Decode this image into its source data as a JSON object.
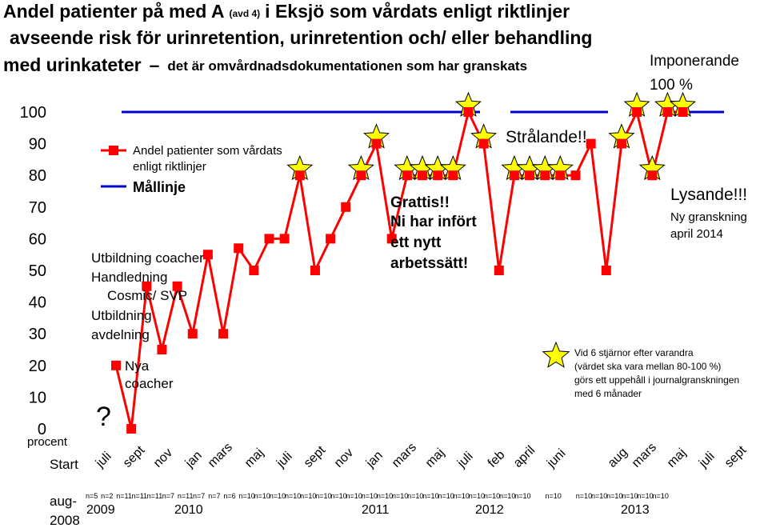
{
  "title": {
    "line1_a": "Andel patienter på med A",
    "line1_small": "(avd 4)",
    "line1_b": "i Eksjö som vårdats enligt riktlinjer",
    "line2": "avseende risk för urinretention, urinretention och/ eller behandling",
    "line3_a": "med urinkateter",
    "line3_dash": "–",
    "line3_b": "det är omvårdnadsdokumentationen som har granskats"
  },
  "annotations": {
    "imponerande": "Imponerande",
    "hundra": "100 %",
    "stralande": "Strålande!!",
    "lysande": "Lysande!!!",
    "ny_granskning_1": "Ny granskning",
    "ny_granskning_2": "april 2014",
    "grattis_1": "Grattis!!",
    "grattis_2": "Ni har infört",
    "grattis_3": "ett nytt",
    "grattis_4": "arbetssätt!",
    "utb_coacher": "Utbildning coacher",
    "handledning": "Handledning",
    "cosmic": "Cosmic/ SVP",
    "utb_avd_1": "Utbildning",
    "utb_avd_2": "avdelning",
    "nya_1": "Nya",
    "nya_2": "coacher",
    "question": "?",
    "star_note_1": "Vid 6 stjärnor efter varandra",
    "star_note_2": "(värdet ska vara mellan 80-100 %)",
    "star_note_3": "görs ett uppehåll i journalgranskningen",
    "star_note_4": "med 6 månader"
  },
  "legend": {
    "series": "Andel patienter som vårdats",
    "series_2": "enligt riktlinjer",
    "target": "Mållinje"
  },
  "axis": {
    "ylabel": "procent",
    "start": "Start",
    "aug_1": "aug-",
    "aug_2": "2008",
    "yticks": [
      "0",
      "10",
      "20",
      "30",
      "40",
      "50",
      "60",
      "70",
      "80",
      "90",
      "100"
    ],
    "months": [
      "juli",
      "sept",
      "nov",
      "jan",
      "mars",
      "maj",
      "juli",
      "sept",
      "nov",
      "jan",
      "mars",
      "maj",
      "juli",
      "feb",
      "april",
      "juni",
      "aug",
      "mars",
      "maj",
      "juli",
      "sept"
    ],
    "years": [
      "2009",
      "2010",
      "2011",
      "2012",
      "2013"
    ]
  },
  "colors": {
    "series": "#ff0000",
    "target": "#0000cc",
    "star_fill": "#ffff00"
  },
  "chart_data": {
    "type": "line",
    "ylim": [
      0,
      100
    ],
    "target_value": 100,
    "series": [
      {
        "name": "Andel patienter som vårdats enligt riktlinjer",
        "values": [
          20,
          0,
          45,
          25,
          45,
          30,
          55,
          30,
          57,
          50,
          60,
          60,
          80,
          50,
          60,
          70,
          80,
          90,
          60,
          80,
          80,
          80,
          80,
          100,
          90,
          50,
          80,
          80,
          80,
          80,
          80,
          90,
          50,
          90,
          100,
          80,
          100,
          100
        ],
        "stars": [
          false,
          false,
          false,
          false,
          false,
          false,
          false,
          false,
          false,
          false,
          false,
          false,
          true,
          false,
          false,
          false,
          true,
          true,
          false,
          true,
          true,
          true,
          true,
          true,
          true,
          false,
          true,
          true,
          true,
          true,
          false,
          false,
          false,
          true,
          true,
          true,
          true,
          true
        ],
        "n": [
          "n=5",
          "n=2",
          "n=11",
          "n=11",
          "n=11",
          "n=7",
          "n=11",
          "n=7",
          "n=7",
          "n=6",
          "n=10",
          "n=10",
          "n=10",
          "n=10",
          "n=10",
          "n=10",
          "n=10",
          "n=10",
          "n=10",
          "n=10",
          "n=10",
          "n=10",
          "n=10",
          "n=10",
          "n=10",
          "n=10",
          "n=10",
          "n=10",
          "n=10",
          "",
          "n=10",
          "",
          "n=10",
          "n=10",
          "n=10",
          "n=10",
          "n=10",
          "n=10"
        ]
      }
    ]
  }
}
